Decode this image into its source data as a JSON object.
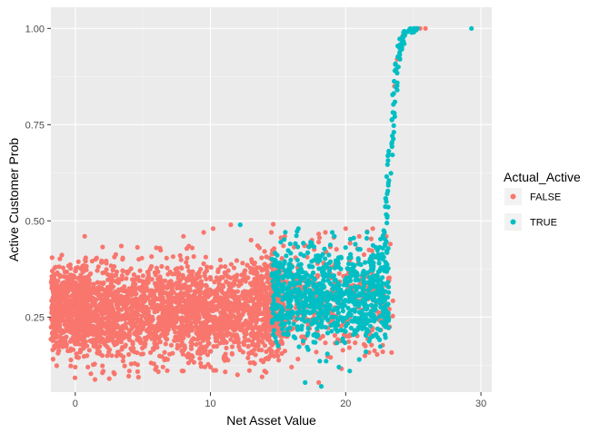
{
  "chart_data": {
    "type": "scatter",
    "xlabel": "Net Asset Value",
    "ylabel": "Active Customer Prob",
    "xlim": [
      -1.8,
      30.8
    ],
    "ylim": [
      0.055,
      1.055
    ],
    "x_ticks": [
      0,
      10,
      20,
      30
    ],
    "y_ticks": [
      0.25,
      0.5,
      0.75,
      1.0
    ],
    "x_tick_labels": [
      "0",
      "10",
      "20",
      "30"
    ],
    "y_tick_labels": [
      "0.25",
      "0.50",
      "0.75",
      "1.00"
    ],
    "grid": true,
    "panel_background": "#ebebeb",
    "legend": {
      "title": "Actual_Active",
      "placement": "right",
      "entries": [
        {
          "label": "FALSE",
          "color": "#F8766D"
        },
        {
          "label": "TRUE",
          "color": "#00BFC4"
        }
      ]
    },
    "series": [
      {
        "name": "FALSE",
        "color": "#F8766D",
        "points": [
          [
            0,
            0.12
          ],
          [
            0,
            0.18
          ],
          [
            0,
            0.22
          ],
          [
            0,
            0.26
          ],
          [
            0,
            0.3
          ],
          [
            0,
            0.34
          ],
          [
            0,
            0.37
          ],
          [
            0.7,
            0.46
          ],
          [
            1.5,
            0.4
          ],
          [
            2.3,
            0.39
          ],
          [
            3.5,
            0.4
          ],
          [
            4.7,
            0.4
          ],
          [
            6.0,
            0.43
          ],
          [
            8.0,
            0.46
          ],
          [
            9.5,
            0.47
          ],
          [
            10.2,
            0.48
          ],
          [
            11.5,
            0.49
          ],
          [
            13.0,
            0.45
          ],
          [
            14.5,
            0.47
          ],
          [
            15.5,
            0.46
          ],
          [
            17.5,
            0.45
          ],
          [
            18.0,
            0.08
          ],
          [
            18.5,
            0.47
          ],
          [
            20.0,
            0.48
          ],
          [
            21.0,
            0.46
          ],
          [
            22.0,
            0.48
          ],
          [
            23.0,
            0.46
          ],
          [
            23.3,
            0.44
          ],
          [
            23.6,
            0.85
          ],
          [
            23.8,
            0.92
          ],
          [
            24.2,
            0.98
          ],
          [
            25.5,
            1.0
          ],
          [
            25.9,
            1.0
          ],
          [
            2.0,
            0.15
          ],
          [
            4.0,
            0.11
          ],
          [
            6.0,
            0.12
          ],
          [
            8.0,
            0.11
          ],
          [
            10.0,
            0.12
          ],
          [
            12.0,
            0.1
          ],
          [
            14.0,
            0.11
          ],
          [
            16.0,
            0.12
          ]
        ],
        "dense_bands": [
          {
            "x": [
              -1.8,
              15.5
            ],
            "y_center": 0.265,
            "spread": 0.06,
            "count": 2600
          },
          {
            "x": [
              -1.8,
              1.0
            ],
            "y_center": 0.27,
            "spread": 0.05,
            "count": 250
          },
          {
            "x": [
              13.0,
              23.5
            ],
            "y_center": 0.3,
            "spread": 0.07,
            "count": 450
          }
        ]
      },
      {
        "name": "TRUE",
        "color": "#00BFC4",
        "points": [
          [
            12.2,
            0.49
          ],
          [
            16.5,
            0.48
          ],
          [
            17.0,
            0.08
          ],
          [
            18.2,
            0.07
          ],
          [
            19.5,
            0.12
          ],
          [
            20.3,
            0.11
          ],
          [
            21.0,
            0.14
          ],
          [
            21.5,
            0.16
          ],
          [
            22.0,
            0.2
          ],
          [
            23.0,
            0.55
          ],
          [
            23.4,
            0.7
          ],
          [
            23.6,
            0.78
          ],
          [
            23.9,
            0.9
          ],
          [
            24.1,
            0.96
          ],
          [
            24.4,
            0.99
          ],
          [
            24.8,
            1.0
          ],
          [
            25.3,
            1.0
          ],
          [
            29.3,
            1.0
          ]
        ],
        "dense_bands": [
          {
            "x": [
              14.5,
              23.2
            ],
            "y_center": 0.31,
            "spread": 0.06,
            "count": 900
          }
        ],
        "curve": [
          [
            22.3,
            0.36
          ],
          [
            22.8,
            0.42
          ],
          [
            23.0,
            0.52
          ],
          [
            23.2,
            0.62
          ],
          [
            23.4,
            0.72
          ],
          [
            23.6,
            0.82
          ],
          [
            23.8,
            0.9
          ],
          [
            24.0,
            0.95
          ],
          [
            24.3,
            0.98
          ],
          [
            24.7,
            0.995
          ],
          [
            25.2,
            1.0
          ]
        ]
      }
    ]
  }
}
